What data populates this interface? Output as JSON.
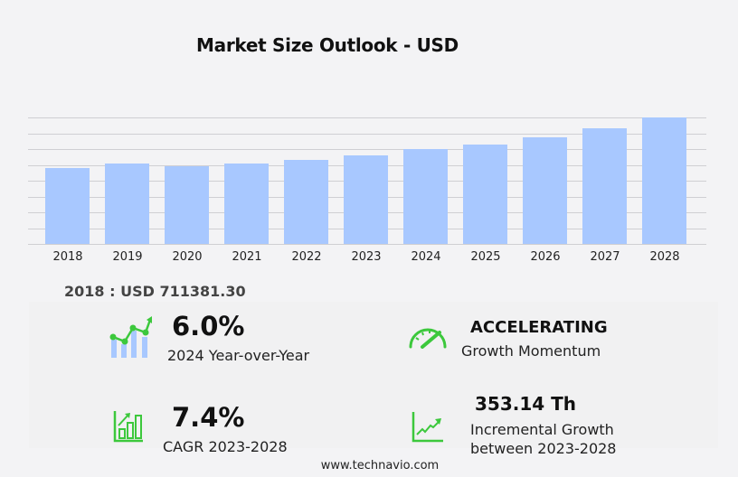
{
  "header": {
    "title": "Market Size Outlook  - USD"
  },
  "chart_data": {
    "type": "bar",
    "title": "Market Size Outlook - USD",
    "xlabel": "",
    "ylabel": "",
    "categories": [
      "2018",
      "2019",
      "2020",
      "2021",
      "2022",
      "2023",
      "2024",
      "2025",
      "2026",
      "2027",
      "2028"
    ],
    "values": [
      711.38,
      754,
      728,
      754,
      788,
      830,
      887,
      929,
      997,
      1082,
      1183
    ],
    "value_unit": "USD thousand (estimated from bar heights; 2018 labeled 711381.30)",
    "colors": {
      "bar": "#a8c8ff",
      "grid": "#cfcfd3"
    },
    "grid": true,
    "gridlines": 9,
    "legend": "none",
    "y_axis_labels_visible": false
  },
  "base_value": {
    "text": "2018 : USD  711381.30"
  },
  "kpis": {
    "yoy": {
      "value": "6.0%",
      "label": "2024 Year-over-Year",
      "icon": "bar-line-growth-icon"
    },
    "momentum": {
      "value": "ACCELERATING",
      "label": "Growth Momentum",
      "icon": "speedometer-icon"
    },
    "cagr": {
      "value": "7.4%",
      "label": "CAGR 2023-2028",
      "icon": "bar-chart-arrow-icon"
    },
    "incremental": {
      "value": "353.14 Th",
      "label_line1": "Incremental Growth",
      "label_line2": "between 2023-2028",
      "icon": "trend-line-icon"
    }
  },
  "footer": {
    "source": "www.technavio.com"
  },
  "colors": {
    "accent_green": "#3cc83c",
    "bar_blue": "#a8c8ff",
    "background": "#f3f3f5"
  }
}
